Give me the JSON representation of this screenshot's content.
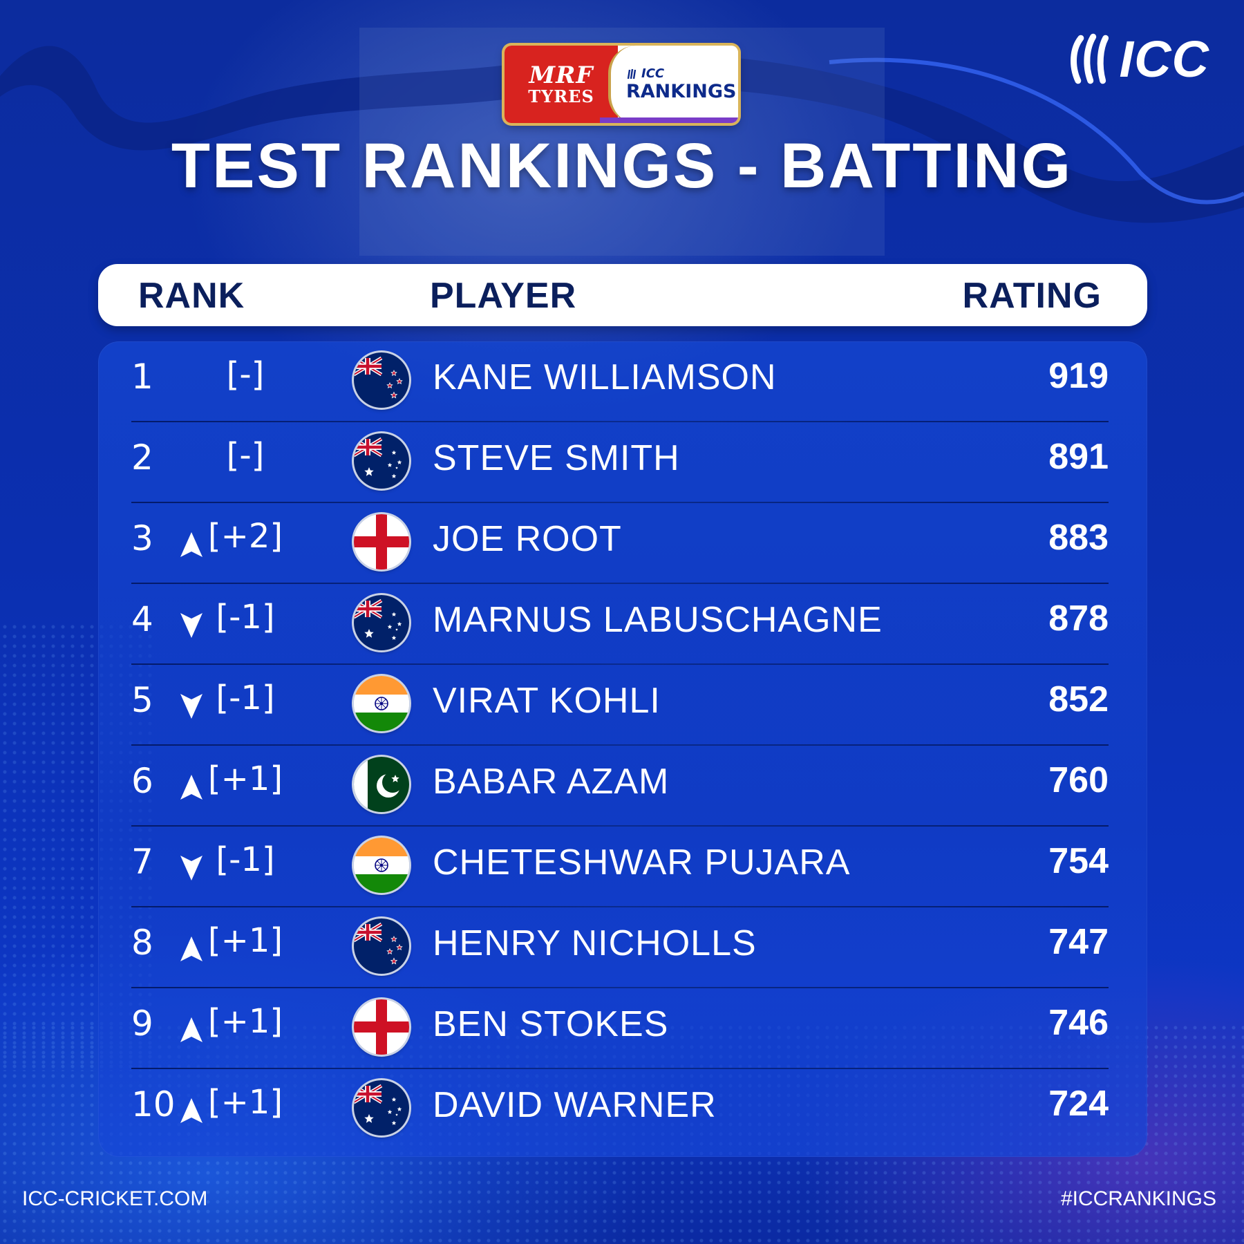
{
  "sponsor": {
    "brand_line1": "MRF",
    "brand_line2": "TYRES",
    "icc_small": "ICC",
    "icc_rankings": "RANKINGS"
  },
  "logo": {
    "text": "ICC",
    "icon": "icc-stumps-logo-icon"
  },
  "title": "TEST RANKINGS - BATTING",
  "header": {
    "rank": "RANK",
    "player": "PLAYER",
    "rating": "RATING"
  },
  "rows": [
    {
      "rank": "1",
      "trend": "none",
      "move": "[-]",
      "flag": "new-zealand",
      "name": "KANE WILLIAMSON",
      "rating": "919"
    },
    {
      "rank": "2",
      "trend": "none",
      "move": "[-]",
      "flag": "australia",
      "name": "STEVE SMITH",
      "rating": "891"
    },
    {
      "rank": "3",
      "trend": "up",
      "move": "[+2]",
      "flag": "england",
      "name": "JOE ROOT",
      "rating": "883"
    },
    {
      "rank": "4",
      "trend": "down",
      "move": "[-1]",
      "flag": "australia",
      "name": "MARNUS LABUSCHAGNE",
      "rating": "878"
    },
    {
      "rank": "5",
      "trend": "down",
      "move": "[-1]",
      "flag": "india",
      "name": "VIRAT KOHLI",
      "rating": "852"
    },
    {
      "rank": "6",
      "trend": "up",
      "move": "[+1]",
      "flag": "pakistan",
      "name": "BABAR AZAM",
      "rating": "760"
    },
    {
      "rank": "7",
      "trend": "down",
      "move": "[-1]",
      "flag": "india",
      "name": "CHETESHWAR PUJARA",
      "rating": "754"
    },
    {
      "rank": "8",
      "trend": "up",
      "move": "[+1]",
      "flag": "new-zealand",
      "name": "HENRY NICHOLLS",
      "rating": "747"
    },
    {
      "rank": "9",
      "trend": "up",
      "move": "[+1]",
      "flag": "england",
      "name": "BEN STOKES",
      "rating": "746"
    },
    {
      "rank": "10",
      "trend": "up",
      "move": "[+1]",
      "flag": "australia",
      "name": "DAVID WARNER",
      "rating": "724"
    }
  ],
  "footer": {
    "website": "ICC-CRICKET.COM",
    "hashtag": "#ICCRANKINGS"
  },
  "colors": {
    "panel": "#1446d2",
    "header_text": "#0b1f5c",
    "divider": "#041a6a",
    "mrf_red": "#d8231f"
  }
}
